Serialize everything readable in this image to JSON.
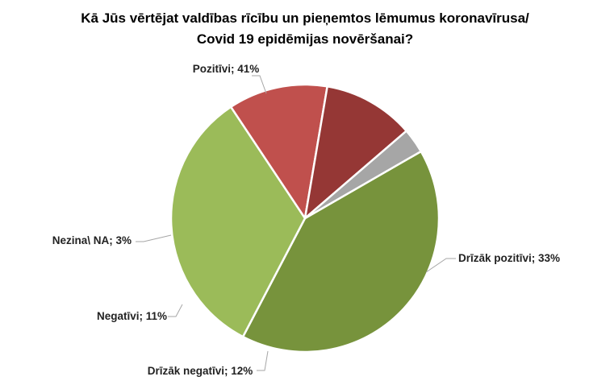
{
  "chart_data": {
    "type": "pie",
    "title": [
      "Kā Jūs vērtējat valdības rīcību un pieņemtos lēmumus koronavīrusa/",
      "Covid 19 epidēmijas novēršanai?"
    ],
    "slices": [
      {
        "label": "Pozitīvi; 41%",
        "value": 41,
        "color": "#77933c"
      },
      {
        "label": "Drīzāk pozitīvi; 33%",
        "value": 33,
        "color": "#9bbb59"
      },
      {
        "label": "Drīzāk negatīvi; 12%",
        "value": 12,
        "color": "#c0504d"
      },
      {
        "label": "Negatīvi; 11%",
        "value": 11,
        "color": "#953735"
      },
      {
        "label": "Nezina\\ NA; 3%",
        "value": 3,
        "color": "#a6a6a6"
      }
    ]
  }
}
